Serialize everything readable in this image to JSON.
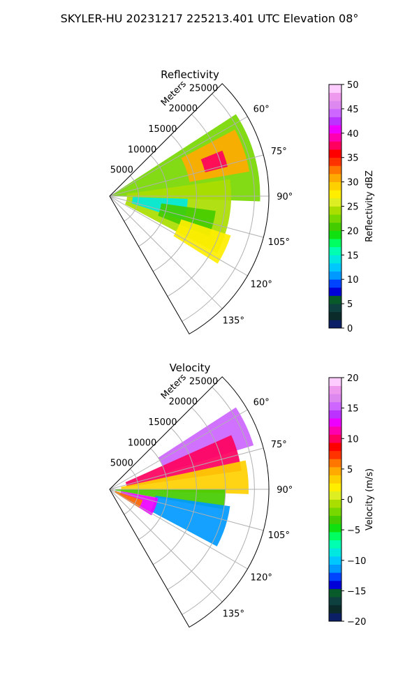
{
  "figure": {
    "suptitle": "SKYLER-HU  20231217  225213.401 UTC Elevation 08°"
  },
  "chart_data": [
    {
      "type": "heatmap",
      "projection": "polar-sector",
      "title": "Reflectivity",
      "radius_label": "Meters",
      "radius_ticks": [
        5000,
        10000,
        15000,
        20000,
        25000
      ],
      "radius_tick_labels": [
        "5000",
        "10000",
        "15000",
        "20000",
        "25000"
      ],
      "rmax": 27500,
      "azimuth_range_deg": [
        45,
        150
      ],
      "azimuth_ticks": [
        60,
        75,
        90,
        105,
        120,
        135
      ],
      "azimuth_tick_labels": [
        "60°",
        "75°",
        "90°",
        "105°",
        "120°",
        "135°"
      ],
      "grid": true,
      "colorbar": {
        "label": "Reflectivity dBZ",
        "vmin": 0,
        "vmax": 50,
        "ticks": [
          0,
          5,
          10,
          15,
          20,
          25,
          30,
          35,
          40,
          45,
          50
        ],
        "tick_labels": [
          "0",
          "5",
          "10",
          "15",
          "20",
          "25",
          "30",
          "35",
          "40",
          "45",
          "50"
        ],
        "colors": [
          "#0a1f66",
          "#0b2a2a",
          "#0f4040",
          "#085a2a",
          "#0000d8",
          "#0044ff",
          "#0099ff",
          "#00c8ff",
          "#00e8e0",
          "#00ffb0",
          "#00ff60",
          "#11e010",
          "#44cc00",
          "#77d800",
          "#aadd00",
          "#ddee22",
          "#ffee00",
          "#ffd000",
          "#ffaa00",
          "#ff7700",
          "#ff3300",
          "#ff0000",
          "#ff0060",
          "#ff00b0",
          "#ee00ff",
          "#bb33ff",
          "#cc66ff",
          "#dd88ee",
          "#ee99ee",
          "#ffccff"
        ]
      },
      "echo_regions": [
        {
          "az": [
            57,
            92
          ],
          "r": [
            0,
            26000
          ],
          "value": 23
        },
        {
          "az": [
            62,
            80
          ],
          "r": [
            14000,
            24500
          ],
          "value": 30
        },
        {
          "az": [
            68,
            76
          ],
          "r": [
            17000,
            21000
          ],
          "value": 38
        },
        {
          "az": [
            82,
            118
          ],
          "r": [
            3000,
            21000
          ],
          "value": 24
        },
        {
          "az": [
            92,
            108
          ],
          "r": [
            4000,
            13500
          ],
          "value": 14
        },
        {
          "az": [
            98,
            112
          ],
          "r": [
            9000,
            18500
          ],
          "value": 20
        },
        {
          "az": [
            108,
            122
          ],
          "r": [
            13000,
            22000
          ],
          "value": 27
        }
      ]
    },
    {
      "type": "heatmap",
      "projection": "polar-sector",
      "title": "Velocity",
      "radius_label": "Meters",
      "radius_ticks": [
        5000,
        10000,
        15000,
        20000,
        25000
      ],
      "radius_tick_labels": [
        "5000",
        "10000",
        "15000",
        "20000",
        "25000"
      ],
      "rmax": 27500,
      "azimuth_range_deg": [
        45,
        150
      ],
      "azimuth_ticks": [
        60,
        75,
        90,
        105,
        120,
        135
      ],
      "azimuth_tick_labels": [
        "60°",
        "75°",
        "90°",
        "105°",
        "120°",
        "135°"
      ],
      "grid": true,
      "colorbar": {
        "label": "Velocity (m/s)",
        "vmin": -20,
        "vmax": 20,
        "ticks": [
          -20,
          -15,
          -10,
          -5,
          0,
          5,
          10,
          15,
          20
        ],
        "tick_labels": [
          "−20",
          "−15",
          "−10",
          "−5",
          "0",
          "5",
          "10",
          "15",
          "20"
        ],
        "colors": [
          "#0a1f66",
          "#0b2a2a",
          "#0f4040",
          "#085a2a",
          "#0000d8",
          "#0044ff",
          "#0099ff",
          "#00c8ff",
          "#00e8e0",
          "#00ffb0",
          "#00ff60",
          "#11e010",
          "#44cc00",
          "#77d800",
          "#aadd00",
          "#ddee22",
          "#ffee00",
          "#ffd000",
          "#ffaa00",
          "#ff7700",
          "#ff3300",
          "#ff0000",
          "#ff0060",
          "#ff00b0",
          "#ee00ff",
          "#bb33ff",
          "#cc66ff",
          "#dd88ee",
          "#ee99ee",
          "#ffccff"
        ]
      },
      "echo_regions": [
        {
          "az": [
            57,
            73
          ],
          "r": [
            10000,
            26000
          ],
          "value": 15
        },
        {
          "az": [
            66,
            82
          ],
          "r": [
            3000,
            23000
          ],
          "value": 10
        },
        {
          "az": [
            78,
            92
          ],
          "r": [
            2000,
            24000
          ],
          "value": 3
        },
        {
          "az": [
            90,
            100
          ],
          "r": [
            1000,
            20000
          ],
          "value": -3
        },
        {
          "az": [
            98,
            118
          ],
          "r": [
            8000,
            21000
          ],
          "value": -11
        },
        {
          "az": [
            100,
            122
          ],
          "r": [
            2000,
            8500
          ],
          "value": 13
        },
        {
          "az": [
            108,
            122
          ],
          "r": [
            1000,
            6000
          ],
          "value": 6
        }
      ]
    }
  ]
}
